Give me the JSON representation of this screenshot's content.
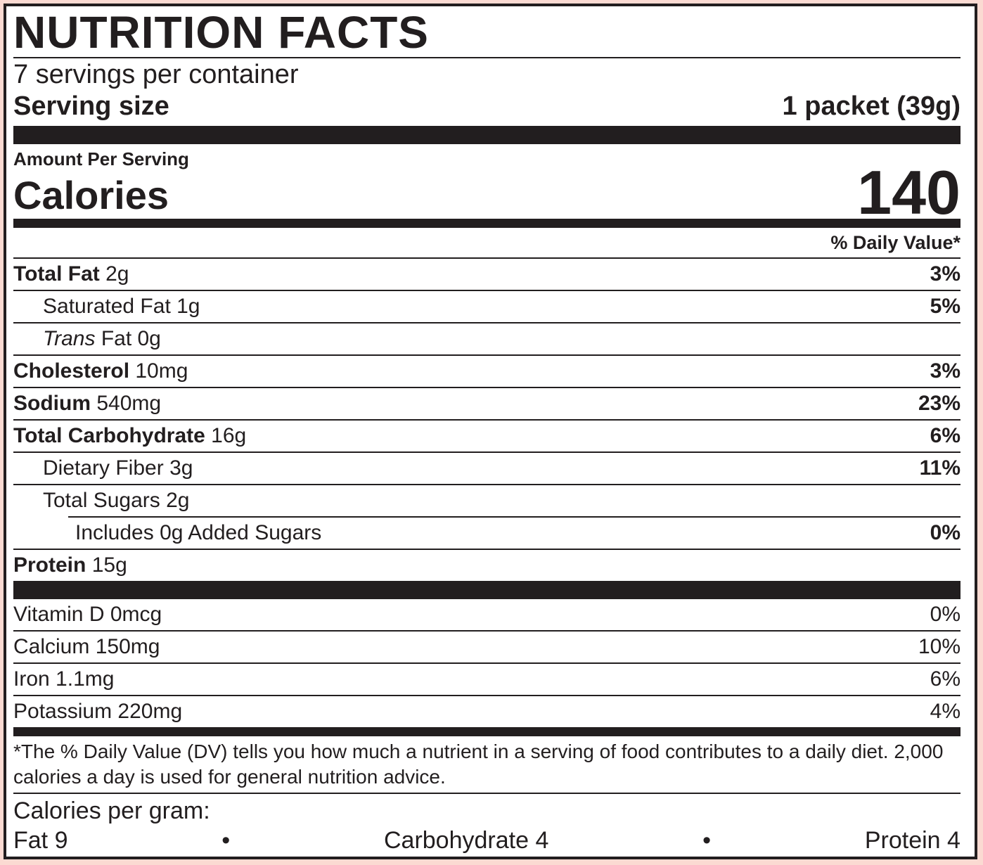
{
  "label": {
    "title": "NUTRITION FACTS",
    "servings_per_container": "7 servings per container",
    "serving_size_label": "Serving size",
    "serving_size_value": "1 packet (39g)",
    "amount_per_serving": "Amount Per Serving",
    "calories_label": "Calories",
    "calories_value": "140",
    "daily_value_header": "% Daily Value*",
    "nutrients": [
      {
        "name": "Total Fat",
        "amount": "2g",
        "dv": "3%"
      },
      {
        "name": "Saturated Fat",
        "amount": "1g",
        "dv": "5%"
      },
      {
        "name": "Trans",
        "amount": "Fat 0g",
        "dv": ""
      },
      {
        "name": "Cholesterol",
        "amount": "10mg",
        "dv": "3%"
      },
      {
        "name": "Sodium",
        "amount": "540mg",
        "dv": "23%"
      },
      {
        "name": "Total Carbohydrate",
        "amount": "16g",
        "dv": "6%"
      },
      {
        "name": "Dietary Fiber",
        "amount": "3g",
        "dv": "11%"
      },
      {
        "name": "Total Sugars",
        "amount": "2g",
        "dv": ""
      },
      {
        "name": "Includes 0g Added Sugars",
        "amount": "",
        "dv": "0%"
      },
      {
        "name": "Protein",
        "amount": "15g",
        "dv": ""
      }
    ],
    "micronutrients": [
      {
        "name": "Vitamin D",
        "amount": "0mcg",
        "dv": "0%"
      },
      {
        "name": "Calcium",
        "amount": "150mg",
        "dv": "10%"
      },
      {
        "name": "Iron",
        "amount": "1.1mg",
        "dv": "6%"
      },
      {
        "name": "Potassium",
        "amount": "220mg",
        "dv": "4%"
      }
    ],
    "footnote": "*The % Daily Value (DV) tells you how much a nutrient in a serving of food contributes to a daily diet. 2,000 calories a day is used for general nutrition advice.",
    "calories_per_gram": {
      "heading": "Calories per gram:",
      "separator": "•",
      "items": [
        "Fat 9",
        "Carbohydrate 4",
        "Protein 4"
      ]
    },
    "colors": {
      "background": "#fbdad2",
      "ink": "#221e1f",
      "label_background": "#ffffff"
    }
  }
}
